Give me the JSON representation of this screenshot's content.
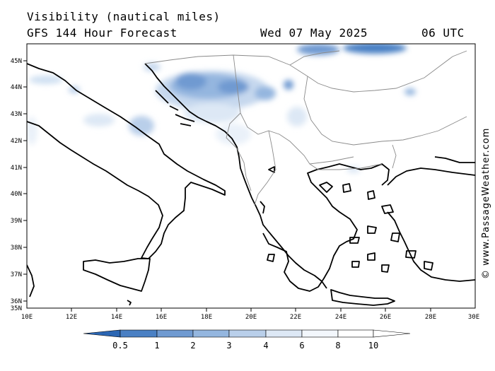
{
  "header": {
    "title": "Visibility (nautical miles)",
    "subtitle": "GFS 144 Hour Forecast",
    "date": "Wed 07 May 2025",
    "time": "06 UTC"
  },
  "map": {
    "lat_labels": [
      "45N",
      "44N",
      "43N",
      "42N",
      "41N",
      "40N",
      "39N",
      "38N",
      "37N",
      "36N",
      "35N"
    ],
    "lon_labels": [
      "10E",
      "12E",
      "14E",
      "16E",
      "18E",
      "20E",
      "22E",
      "24E",
      "26E",
      "28E",
      "30E"
    ]
  },
  "colorbar": {
    "labels": [
      "0.5",
      "1",
      "2",
      "3",
      "4",
      "6",
      "8",
      "10"
    ],
    "colors": [
      "#2b66b3",
      "#4a80c4",
      "#6f9ad1",
      "#94b6df",
      "#b9cfea",
      "#dde8f5",
      "#f3f7fc",
      "#ffffff"
    ]
  },
  "watermark": "© www.PassageWeather.com"
}
